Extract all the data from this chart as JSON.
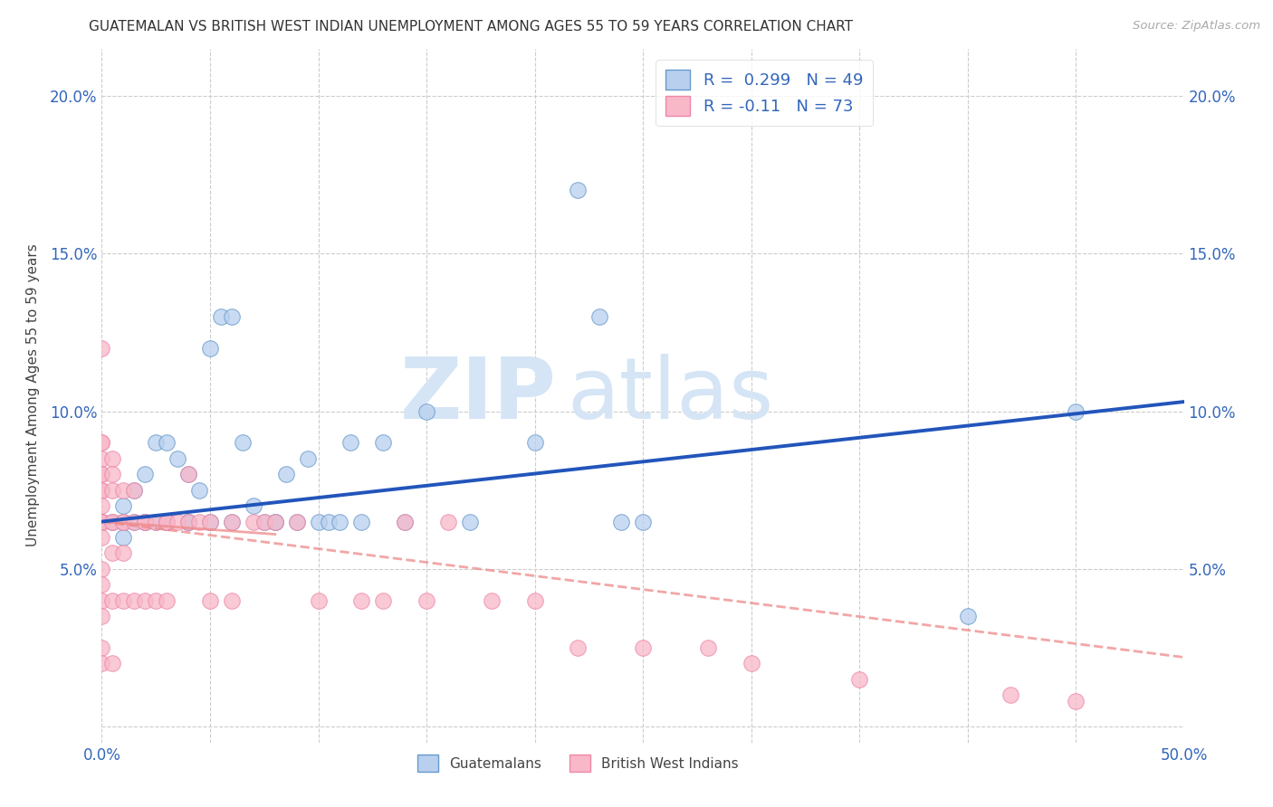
{
  "title": "GUATEMALAN VS BRITISH WEST INDIAN UNEMPLOYMENT AMONG AGES 55 TO 59 YEARS CORRELATION CHART",
  "source": "Source: ZipAtlas.com",
  "ylabel": "Unemployment Among Ages 55 to 59 years",
  "xlim": [
    0.0,
    0.5
  ],
  "ylim": [
    -0.005,
    0.215
  ],
  "color_blue_fill": "#b8d0ee",
  "color_blue_edge": "#6699cc",
  "color_pink_fill": "#f8b8c8",
  "color_pink_edge": "#ee88aa",
  "color_blue_line": "#2255bb",
  "color_pink_line": "#ee8888",
  "watermark_zip": "ZIP",
  "watermark_atlas": "atlas",
  "watermark_color": "#d5e5f5",
  "r1": 0.299,
  "n1": 49,
  "r2": -0.11,
  "n2": 73,
  "blue_line_x0": 0.0,
  "blue_line_y0": 0.065,
  "blue_line_x1": 0.5,
  "blue_line_y1": 0.103,
  "pink_line_x0": 0.0,
  "pink_line_y0": 0.065,
  "pink_line_x1": 0.5,
  "pink_line_y1": 0.022,
  "guatemalan_x": [
    0.005,
    0.01,
    0.01,
    0.01,
    0.015,
    0.015,
    0.02,
    0.02,
    0.025,
    0.025,
    0.03,
    0.03,
    0.03,
    0.035,
    0.04,
    0.04,
    0.045,
    0.05,
    0.055,
    0.06,
    0.065,
    0.07,
    0.075,
    0.08,
    0.085,
    0.09,
    0.095,
    0.1,
    0.105,
    0.11,
    0.115,
    0.12,
    0.13,
    0.14,
    0.15,
    0.17,
    0.2,
    0.22,
    0.23,
    0.24,
    0.25,
    0.4,
    0.45,
    0.02,
    0.03,
    0.04,
    0.05,
    0.06,
    0.08
  ],
  "guatemalan_y": [
    0.065,
    0.065,
    0.07,
    0.06,
    0.065,
    0.075,
    0.065,
    0.08,
    0.09,
    0.065,
    0.065,
    0.09,
    0.065,
    0.085,
    0.065,
    0.08,
    0.075,
    0.12,
    0.13,
    0.065,
    0.09,
    0.07,
    0.065,
    0.065,
    0.08,
    0.065,
    0.085,
    0.065,
    0.065,
    0.065,
    0.09,
    0.065,
    0.09,
    0.065,
    0.1,
    0.065,
    0.09,
    0.17,
    0.13,
    0.065,
    0.065,
    0.035,
    0.1,
    0.065,
    0.065,
    0.065,
    0.065,
    0.13,
    0.065
  ],
  "bwi_x": [
    0.0,
    0.0,
    0.0,
    0.0,
    0.0,
    0.0,
    0.0,
    0.0,
    0.0,
    0.0,
    0.0,
    0.0,
    0.0,
    0.0,
    0.0,
    0.0,
    0.0,
    0.0,
    0.0,
    0.0,
    0.0,
    0.0,
    0.005,
    0.005,
    0.005,
    0.005,
    0.005,
    0.005,
    0.005,
    0.005,
    0.01,
    0.01,
    0.01,
    0.01,
    0.01,
    0.015,
    0.015,
    0.015,
    0.02,
    0.02,
    0.02,
    0.025,
    0.025,
    0.03,
    0.03,
    0.03,
    0.035,
    0.04,
    0.04,
    0.045,
    0.05,
    0.05,
    0.06,
    0.06,
    0.07,
    0.075,
    0.08,
    0.09,
    0.1,
    0.12,
    0.13,
    0.14,
    0.15,
    0.16,
    0.18,
    0.2,
    0.22,
    0.25,
    0.28,
    0.3,
    0.35,
    0.42,
    0.45
  ],
  "bwi_y": [
    0.12,
    0.09,
    0.09,
    0.085,
    0.08,
    0.08,
    0.075,
    0.075,
    0.07,
    0.065,
    0.065,
    0.065,
    0.065,
    0.065,
    0.065,
    0.06,
    0.05,
    0.045,
    0.04,
    0.035,
    0.025,
    0.02,
    0.085,
    0.08,
    0.075,
    0.065,
    0.065,
    0.055,
    0.04,
    0.02,
    0.075,
    0.065,
    0.065,
    0.055,
    0.04,
    0.075,
    0.065,
    0.04,
    0.065,
    0.065,
    0.04,
    0.065,
    0.04,
    0.065,
    0.065,
    0.04,
    0.065,
    0.08,
    0.065,
    0.065,
    0.065,
    0.04,
    0.065,
    0.04,
    0.065,
    0.065,
    0.065,
    0.065,
    0.04,
    0.04,
    0.04,
    0.065,
    0.04,
    0.065,
    0.04,
    0.04,
    0.025,
    0.025,
    0.025,
    0.02,
    0.015,
    0.01,
    0.008
  ]
}
